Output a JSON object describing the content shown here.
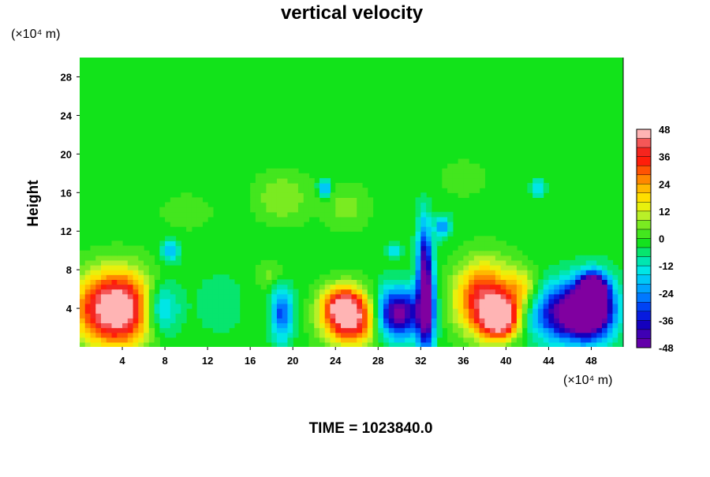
{
  "chart_data": {
    "type": "heatmap",
    "title": "vertical velocity",
    "ylabel": "Height",
    "y_unit": "(×10⁴ m)",
    "x_unit": "(×10⁴ m)",
    "footer": "TIME = 1023840.0",
    "xlim": [
      0,
      51
    ],
    "ylim": [
      0,
      30
    ],
    "x_ticks": [
      4,
      8,
      12,
      16,
      20,
      24,
      28,
      32,
      36,
      40,
      44,
      48
    ],
    "y_ticks": [
      4,
      8,
      12,
      16,
      20,
      24,
      28
    ],
    "x_tick_labels": [
      "4",
      "8",
      "12",
      "16",
      "20",
      "24",
      "28",
      "32",
      "36",
      "40",
      "44",
      "48"
    ],
    "y_tick_labels": [
      "4",
      "8",
      "12",
      "16",
      "20",
      "24",
      "28"
    ],
    "colorbar": {
      "min": -48,
      "max": 48,
      "ticks": [
        48,
        36,
        24,
        12,
        0,
        -12,
        -24,
        -36,
        -48
      ],
      "tick_labels": [
        "48",
        "36",
        "24",
        "12",
        "0",
        "-12",
        "-24",
        "-36",
        "-48"
      ]
    },
    "grid": false,
    "features": [
      {
        "x": 3.5,
        "y": 4.0,
        "sx": 2.6,
        "sy": 2.6,
        "value": 60
      },
      {
        "x": 7.5,
        "y": 4.0,
        "sx": 1.3,
        "sy": 2.0,
        "value": -28
      },
      {
        "x": 8.5,
        "y": 10.0,
        "sx": 0.6,
        "sy": 0.8,
        "value": -18
      },
      {
        "x": 19.0,
        "y": 3.5,
        "sx": 0.7,
        "sy": 2.0,
        "value": -28
      },
      {
        "x": 25.5,
        "y": 3.0,
        "sx": 1.8,
        "sy": 1.9,
        "value": 50
      },
      {
        "x": 24.5,
        "y": 4.5,
        "sx": 1.2,
        "sy": 1.3,
        "value": 26
      },
      {
        "x": 29.8,
        "y": 3.5,
        "sx": 1.6,
        "sy": 1.8,
        "value": -50
      },
      {
        "x": 32.5,
        "y": 4.5,
        "sx": 0.55,
        "sy": 3.5,
        "value": -50
      },
      {
        "x": 32.3,
        "y": 10.0,
        "sx": 0.45,
        "sy": 2.8,
        "value": -24
      },
      {
        "x": 34.0,
        "y": 12.5,
        "sx": 0.5,
        "sy": 0.8,
        "value": -22
      },
      {
        "x": 38.0,
        "y": 5.0,
        "sx": 1.9,
        "sy": 2.6,
        "value": 42
      },
      {
        "x": 39.5,
        "y": 3.0,
        "sx": 1.2,
        "sy": 1.4,
        "value": 48
      },
      {
        "x": 45.5,
        "y": 3.5,
        "sx": 2.3,
        "sy": 2.0,
        "value": -42
      },
      {
        "x": 48.0,
        "y": 4.0,
        "sx": 1.5,
        "sy": 2.1,
        "value": -55
      },
      {
        "x": 48.2,
        "y": 6.2,
        "sx": 0.8,
        "sy": 1.0,
        "value": -50
      },
      {
        "x": 19.0,
        "y": 15.5,
        "sx": 1.8,
        "sy": 1.8,
        "value": 10
      },
      {
        "x": 25.0,
        "y": 14.5,
        "sx": 1.5,
        "sy": 1.6,
        "value": 8
      },
      {
        "x": 18.0,
        "y": 7.5,
        "sx": 1.0,
        "sy": 1.0,
        "value": 8
      },
      {
        "x": 13.0,
        "y": 4.5,
        "sx": 1.5,
        "sy": 2.0,
        "value": -6
      },
      {
        "x": 41.5,
        "y": 6.0,
        "sx": 1.0,
        "sy": 1.5,
        "value": 18
      },
      {
        "x": 23.0,
        "y": 16.5,
        "sx": 0.4,
        "sy": 0.6,
        "value": -26
      },
      {
        "x": 43.0,
        "y": 16.5,
        "sx": 0.4,
        "sy": 0.6,
        "value": -18
      },
      {
        "x": 29.5,
        "y": 10.0,
        "sx": 0.4,
        "sy": 0.5,
        "value": -14
      },
      {
        "x": 36.0,
        "y": 17.5,
        "sx": 1.5,
        "sy": 1.2,
        "value": 6
      },
      {
        "x": 10.0,
        "y": 14.0,
        "sx": 2.0,
        "sy": 1.5,
        "value": 4
      }
    ]
  }
}
